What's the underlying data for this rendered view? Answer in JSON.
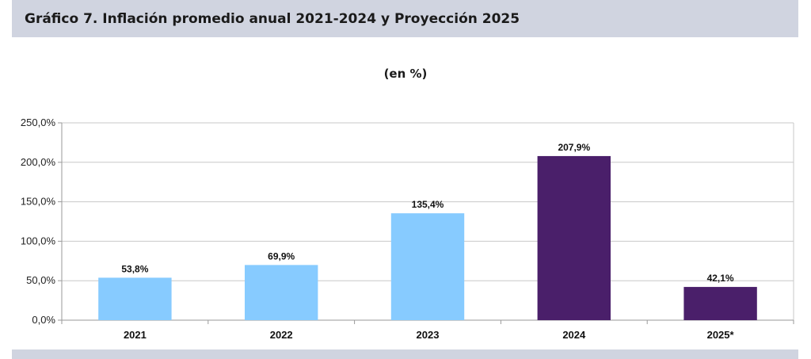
{
  "header": {
    "title": "Gráfico 7. Inflación promedio anual 2021-2024 y Proyección 2025"
  },
  "chart_data": {
    "type": "bar",
    "title": "Gráfico 7. Inflación promedio anual 2021-2024 y Proyección 2025",
    "subtitle": "(en %)",
    "categories": [
      "2021",
      "2022",
      "2023",
      "2024",
      "2025*"
    ],
    "values": [
      53.8,
      69.9,
      135.4,
      207.9,
      42.1
    ],
    "data_labels": [
      "53,8%",
      "69,9%",
      "135,4%",
      "207,9%",
      "42,1%"
    ],
    "bar_colors": [
      "#87cbff",
      "#87cbff",
      "#87cbff",
      "#4a1f6a",
      "#4a1f6a"
    ],
    "yticks": [
      0,
      50,
      100,
      150,
      200,
      250
    ],
    "ytick_labels": [
      "0,0%",
      "50,0%",
      "100,0%",
      "150,0%",
      "200,0%",
      "250,0%"
    ],
    "ylim": [
      0,
      250
    ],
    "xlabel": "",
    "ylabel": "",
    "grid": true,
    "legend": "none"
  }
}
